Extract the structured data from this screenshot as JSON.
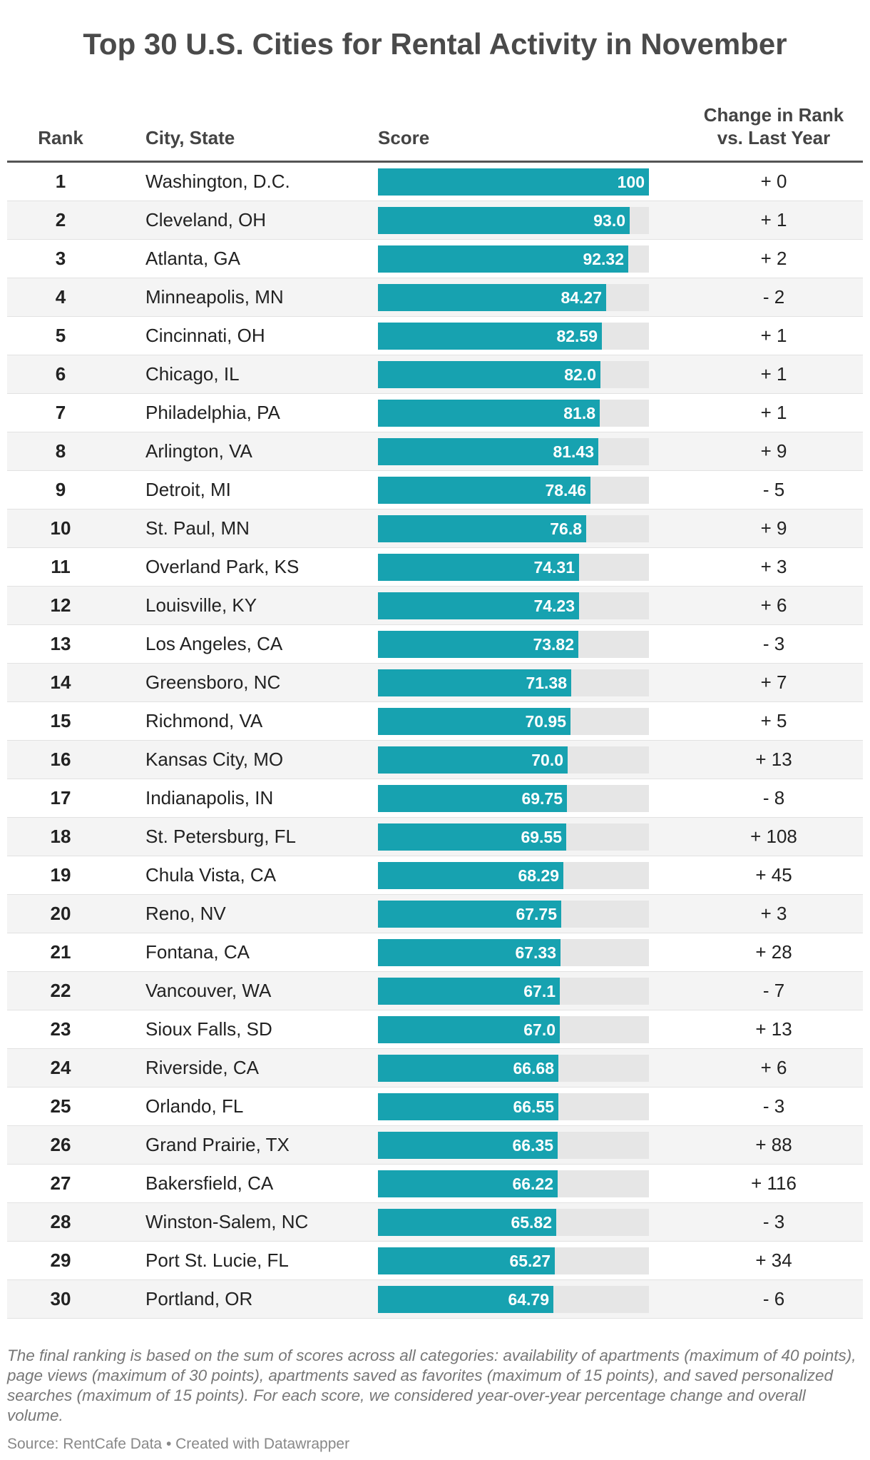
{
  "title": "Top 30 U.S. Cities for Rental Activity in November",
  "header": {
    "rank": "Rank",
    "city": "City, State",
    "score": "Score",
    "change_line1": "Change in Rank",
    "change_line2": "vs. Last Year"
  },
  "colors": {
    "bar": "#17a2b0",
    "track": "#e6e6e6"
  },
  "chart_data": {
    "type": "table",
    "columns": [
      "Rank",
      "City, State",
      "Score",
      "Change in Rank vs. Last Year"
    ],
    "score_range": [
      0,
      100
    ],
    "rows": [
      {
        "rank": "1",
        "city": "Washington, D.C.",
        "score": 100,
        "score_label": "100",
        "change": "+ 0"
      },
      {
        "rank": "2",
        "city": "Cleveland, OH",
        "score": 93.0,
        "score_label": "93.0",
        "change": "+ 1"
      },
      {
        "rank": "3",
        "city": "Atlanta, GA",
        "score": 92.32,
        "score_label": "92.32",
        "change": "+ 2"
      },
      {
        "rank": "4",
        "city": "Minneapolis, MN",
        "score": 84.27,
        "score_label": "84.27",
        "change": "- 2"
      },
      {
        "rank": "5",
        "city": "Cincinnati, OH",
        "score": 82.59,
        "score_label": "82.59",
        "change": "+ 1"
      },
      {
        "rank": "6",
        "city": "Chicago, IL",
        "score": 82.0,
        "score_label": "82.0",
        "change": "+ 1"
      },
      {
        "rank": "7",
        "city": "Philadelphia, PA",
        "score": 81.8,
        "score_label": "81.8",
        "change": "+ 1"
      },
      {
        "rank": "8",
        "city": "Arlington, VA",
        "score": 81.43,
        "score_label": "81.43",
        "change": "+ 9"
      },
      {
        "rank": "9",
        "city": "Detroit, MI",
        "score": 78.46,
        "score_label": "78.46",
        "change": "- 5"
      },
      {
        "rank": "10",
        "city": "St. Paul, MN",
        "score": 76.8,
        "score_label": "76.8",
        "change": "+ 9"
      },
      {
        "rank": "11",
        "city": "Overland Park, KS",
        "score": 74.31,
        "score_label": "74.31",
        "change": "+ 3"
      },
      {
        "rank": "12",
        "city": "Louisville, KY",
        "score": 74.23,
        "score_label": "74.23",
        "change": "+ 6"
      },
      {
        "rank": "13",
        "city": "Los Angeles, CA",
        "score": 73.82,
        "score_label": "73.82",
        "change": "- 3"
      },
      {
        "rank": "14",
        "city": "Greensboro, NC",
        "score": 71.38,
        "score_label": "71.38",
        "change": "+ 7"
      },
      {
        "rank": "15",
        "city": "Richmond, VA",
        "score": 70.95,
        "score_label": "70.95",
        "change": "+ 5"
      },
      {
        "rank": "16",
        "city": "Kansas City, MO",
        "score": 70.0,
        "score_label": "70.0",
        "change": "+ 13"
      },
      {
        "rank": "17",
        "city": "Indianapolis, IN",
        "score": 69.75,
        "score_label": "69.75",
        "change": "- 8"
      },
      {
        "rank": "18",
        "city": "St. Petersburg, FL",
        "score": 69.55,
        "score_label": "69.55",
        "change": "+ 108"
      },
      {
        "rank": "19",
        "city": "Chula Vista, CA",
        "score": 68.29,
        "score_label": "68.29",
        "change": "+ 45"
      },
      {
        "rank": "20",
        "city": "Reno, NV",
        "score": 67.75,
        "score_label": "67.75",
        "change": "+ 3"
      },
      {
        "rank": "21",
        "city": "Fontana, CA",
        "score": 67.33,
        "score_label": "67.33",
        "change": "+ 28"
      },
      {
        "rank": "22",
        "city": "Vancouver, WA",
        "score": 67.1,
        "score_label": "67.1",
        "change": "- 7"
      },
      {
        "rank": "23",
        "city": "Sioux Falls, SD",
        "score": 67.0,
        "score_label": "67.0",
        "change": "+ 13"
      },
      {
        "rank": "24",
        "city": "Riverside, CA",
        "score": 66.68,
        "score_label": "66.68",
        "change": "+ 6"
      },
      {
        "rank": "25",
        "city": "Orlando, FL",
        "score": 66.55,
        "score_label": "66.55",
        "change": "- 3"
      },
      {
        "rank": "26",
        "city": "Grand Prairie, TX",
        "score": 66.35,
        "score_label": "66.35",
        "change": "+ 88"
      },
      {
        "rank": "27",
        "city": "Bakersfield, CA",
        "score": 66.22,
        "score_label": "66.22",
        "change": "+ 116"
      },
      {
        "rank": "28",
        "city": "Winston-Salem, NC",
        "score": 65.82,
        "score_label": "65.82",
        "change": "- 3"
      },
      {
        "rank": "29",
        "city": "Port St. Lucie, FL",
        "score": 65.27,
        "score_label": "65.27",
        "change": "+ 34"
      },
      {
        "rank": "30",
        "city": "Portland, OR",
        "score": 64.79,
        "score_label": "64.79",
        "change": "- 6"
      }
    ]
  },
  "footnote": "The final ranking is based on the sum of scores across all categories: availability of apartments (maximum of 40 points), page views (maximum of 30 points), apartments saved as favorites (maximum of 15 points), and saved personalized searches (maximum of 15 points). For each score, we considered year-over-year percentage change and overall volume.",
  "source": "Source: RentCafe Data • Created with Datawrapper"
}
